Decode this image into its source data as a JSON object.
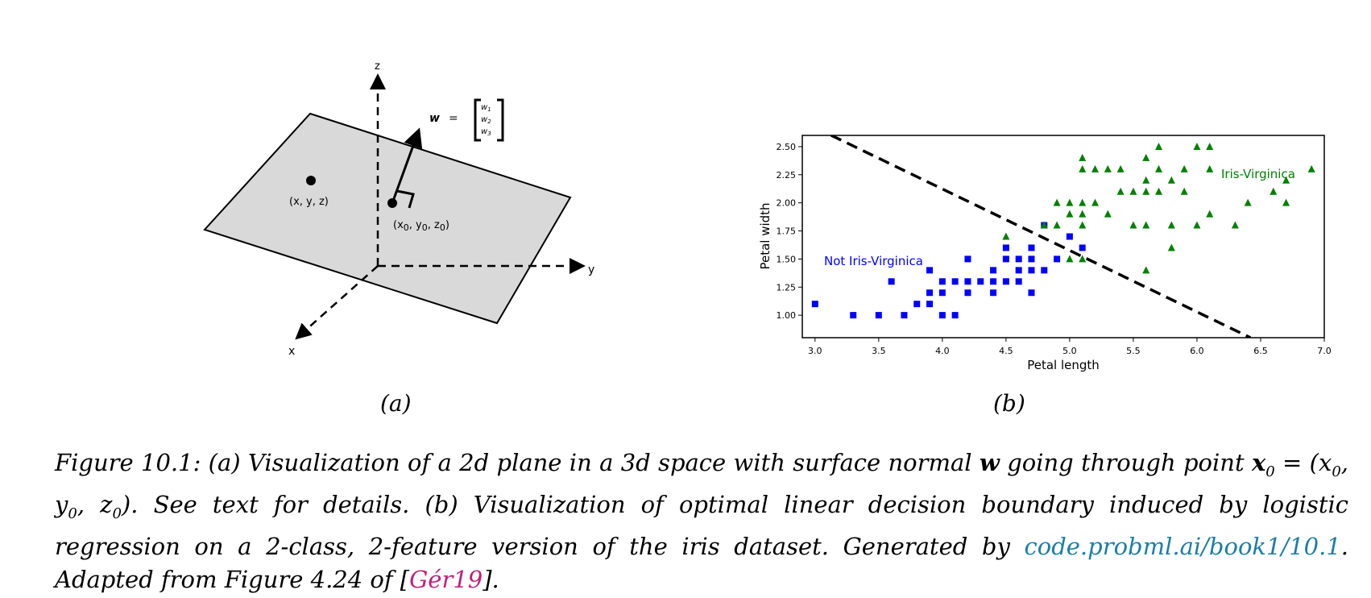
{
  "figure_a": {
    "axis_x": "x",
    "axis_y": "y",
    "axis_z": "z",
    "w_label": "w",
    "w_eq": "=",
    "w_components": [
      "w",
      "w",
      "w"
    ],
    "w_subscripts": [
      "1",
      "2",
      "3"
    ],
    "point_label": "(x, y, z)",
    "point0_label_parts": [
      "(x",
      "0",
      ", y",
      "0",
      ",  z",
      "0",
      ")"
    ]
  },
  "figure_b": {
    "annot_not": "Not Iris-Virginica",
    "annot_yes": "Iris-Virginica"
  },
  "chart_data": {
    "type": "scatter",
    "xlabel": "Petal length",
    "ylabel": "Petal width",
    "xlim": [
      2.9,
      7.0
    ],
    "ylim": [
      0.8,
      2.6
    ],
    "xticks": [
      "3.0",
      "3.5",
      "4.0",
      "4.5",
      "5.0",
      "5.5",
      "6.0",
      "6.5",
      "7.0"
    ],
    "yticks": [
      "1.00",
      "1.25",
      "1.50",
      "1.75",
      "2.00",
      "2.25",
      "2.50"
    ],
    "grid": false,
    "series": [
      {
        "marker": "square",
        "color": "#0000ff",
        "points": [
          [
            3.0,
            1.1
          ],
          [
            3.3,
            1.0
          ],
          [
            3.5,
            1.0
          ],
          [
            3.6,
            1.3
          ],
          [
            3.7,
            1.0
          ],
          [
            3.8,
            1.1
          ],
          [
            3.9,
            1.1
          ],
          [
            3.9,
            1.2
          ],
          [
            3.9,
            1.4
          ],
          [
            4.0,
            1.0
          ],
          [
            4.0,
            1.2
          ],
          [
            4.0,
            1.3
          ],
          [
            4.1,
            1.0
          ],
          [
            4.1,
            1.3
          ],
          [
            4.2,
            1.2
          ],
          [
            4.2,
            1.3
          ],
          [
            4.2,
            1.5
          ],
          [
            4.3,
            1.3
          ],
          [
            4.4,
            1.2
          ],
          [
            4.4,
            1.3
          ],
          [
            4.4,
            1.4
          ],
          [
            4.5,
            1.3
          ],
          [
            4.5,
            1.5
          ],
          [
            4.5,
            1.6
          ],
          [
            4.6,
            1.3
          ],
          [
            4.6,
            1.4
          ],
          [
            4.6,
            1.5
          ],
          [
            4.7,
            1.2
          ],
          [
            4.7,
            1.4
          ],
          [
            4.7,
            1.5
          ],
          [
            4.7,
            1.6
          ],
          [
            4.8,
            1.4
          ],
          [
            4.8,
            1.8
          ],
          [
            4.9,
            1.5
          ],
          [
            5.0,
            1.7
          ],
          [
            5.1,
            1.6
          ]
        ]
      },
      {
        "marker": "triangle",
        "color": "#008000",
        "points": [
          [
            4.5,
            1.7
          ],
          [
            4.8,
            1.8
          ],
          [
            4.9,
            1.8
          ],
          [
            4.9,
            2.0
          ],
          [
            5.0,
            1.5
          ],
          [
            5.0,
            2.0
          ],
          [
            5.0,
            1.9
          ],
          [
            5.1,
            1.5
          ],
          [
            5.1,
            1.8
          ],
          [
            5.1,
            1.9
          ],
          [
            5.1,
            2.0
          ],
          [
            5.1,
            2.3
          ],
          [
            5.1,
            2.4
          ],
          [
            5.2,
            2.0
          ],
          [
            5.2,
            2.3
          ],
          [
            5.3,
            1.9
          ],
          [
            5.3,
            2.3
          ],
          [
            5.4,
            2.1
          ],
          [
            5.4,
            2.3
          ],
          [
            5.5,
            1.8
          ],
          [
            5.5,
            2.1
          ],
          [
            5.6,
            1.4
          ],
          [
            5.6,
            1.8
          ],
          [
            5.6,
            2.1
          ],
          [
            5.6,
            2.2
          ],
          [
            5.6,
            2.4
          ],
          [
            5.7,
            2.1
          ],
          [
            5.7,
            2.3
          ],
          [
            5.7,
            2.5
          ],
          [
            5.8,
            1.6
          ],
          [
            5.8,
            1.8
          ],
          [
            5.8,
            2.2
          ],
          [
            5.9,
            2.1
          ],
          [
            5.9,
            2.3
          ],
          [
            6.0,
            1.8
          ],
          [
            6.0,
            2.5
          ],
          [
            6.1,
            1.9
          ],
          [
            6.1,
            2.3
          ],
          [
            6.1,
            2.5
          ],
          [
            6.3,
            1.8
          ],
          [
            6.4,
            2.0
          ],
          [
            6.6,
            2.1
          ],
          [
            6.7,
            2.0
          ],
          [
            6.7,
            2.2
          ],
          [
            6.9,
            2.3
          ]
        ]
      }
    ],
    "decision_boundary": [
      [
        3.0,
        2.67
      ],
      [
        6.42,
        0.8
      ]
    ]
  },
  "sublabels": {
    "a": "(a)",
    "b": "(b)"
  },
  "caption": {
    "line1": "Figure 10.1: (a) Visualization of a 2d plane in a 3d space with surface normal ",
    "bold_w": "w",
    "line1b": " going through point",
    "math_x0": "x",
    "math_sub0": "0",
    "math_eq": " = (x",
    "math_rest": ", y",
    "math_rest2": ", z",
    "math_close": ").",
    "part2": " See text for details. (b) Visualization of optimal linear decision boundary induced by logistic regression on a 2-class, 2-feature version of the iris dataset. Generated by ",
    "link": "code.probml.ai/book1/10.1",
    "part3": ". Adapted from Figure 4.24 of [",
    "cite": "Gér19",
    "part4": "]."
  }
}
